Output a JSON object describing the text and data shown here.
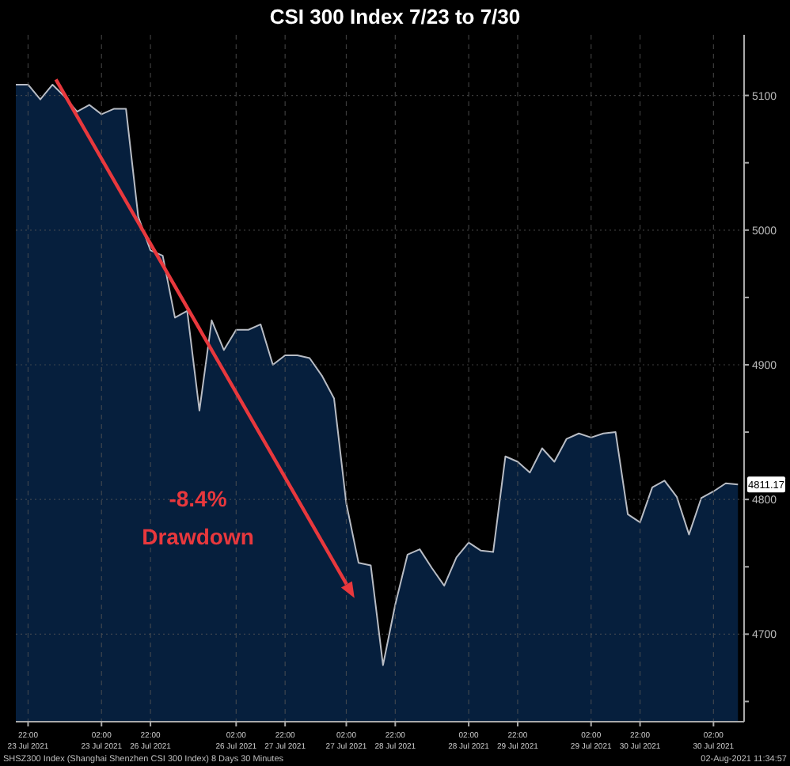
{
  "chart_data": {
    "type": "area",
    "title": "CSI 300 Index 7/23 to 7/30",
    "categories": [
      null,
      "22:00\n23 Jul 2021",
      null,
      null,
      null,
      null,
      null,
      "02:00\n23 Jul 2021",
      null,
      null,
      null,
      "22:00\n26 Jul 2021",
      null,
      null,
      null,
      null,
      null,
      null,
      "02:00\n26 Jul 2021",
      null,
      null,
      null,
      "22:00\n27 Jul 2021",
      null,
      null,
      null,
      null,
      "02:00\n27 Jul 2021",
      null,
      null,
      null,
      "22:00\n28 Jul 2021",
      null,
      null,
      null,
      null,
      null,
      "02:00\n28 Jul 2021",
      null,
      null,
      null,
      "22:00\n29 Jul 2021",
      null,
      null,
      null,
      null,
      null,
      "02:00\n29 Jul 2021",
      null,
      null,
      null,
      "22:00\n30 Jul 2021",
      null,
      null,
      null,
      null,
      null,
      "02:00\n30 Jul 2021",
      null,
      null
    ],
    "series": [
      {
        "color": "#061f3d",
        "values": [
          5108,
          5108,
          5097,
          5108,
          5099,
          5088,
          5093,
          5086,
          5090,
          5090,
          5010,
          4985,
          4981,
          4935,
          4940,
          4866,
          4933,
          4911,
          4926,
          4926,
          4930,
          4900,
          4907,
          4907,
          4905,
          4892,
          4875,
          4797,
          4753,
          4751,
          4677,
          4722,
          4759,
          4763,
          4749,
          4736,
          4757,
          4768,
          4762,
          4761,
          4832,
          4828,
          4820,
          4838,
          4828,
          4845,
          4849,
          4846,
          4849,
          4850,
          4789,
          4783,
          4809,
          4814,
          4802,
          4774,
          4801,
          4806,
          4812,
          4811.17
        ],
        "value_labels": [
          null,
          null,
          null,
          null,
          null,
          null,
          null,
          null,
          null,
          null,
          null,
          null,
          null,
          null,
          null,
          null,
          null,
          null,
          null,
          null,
          null,
          null,
          null,
          null,
          null,
          null,
          null,
          null,
          null,
          null,
          null,
          null,
          null,
          null,
          null,
          null,
          null,
          null,
          null,
          null,
          null,
          null,
          null,
          null,
          null,
          null,
          null,
          null,
          null,
          null,
          null,
          null,
          null,
          null,
          null,
          null,
          null,
          null,
          null,
          "4811.17"
        ]
      }
    ],
    "ylim": [
      4635,
      5145
    ],
    "yticks": [
      {
        "value": 4650,
        "label": null
      },
      4700,
      {
        "value": 4750,
        "label": null
      },
      4800,
      {
        "value": 4850,
        "label": null
      },
      4900,
      {
        "value": 4950,
        "label": null
      },
      5000,
      {
        "value": 5050,
        "label": null
      },
      5100
    ],
    "grid": true,
    "annotations": [
      "-8.4%",
      "Drawdown",
      "SHSZ300 Index (Shanghai Shenzhen CSI 300 Index) 8 Days 30 Minutes",
      "02-Aug-2021 11:34:57"
    ]
  }
}
